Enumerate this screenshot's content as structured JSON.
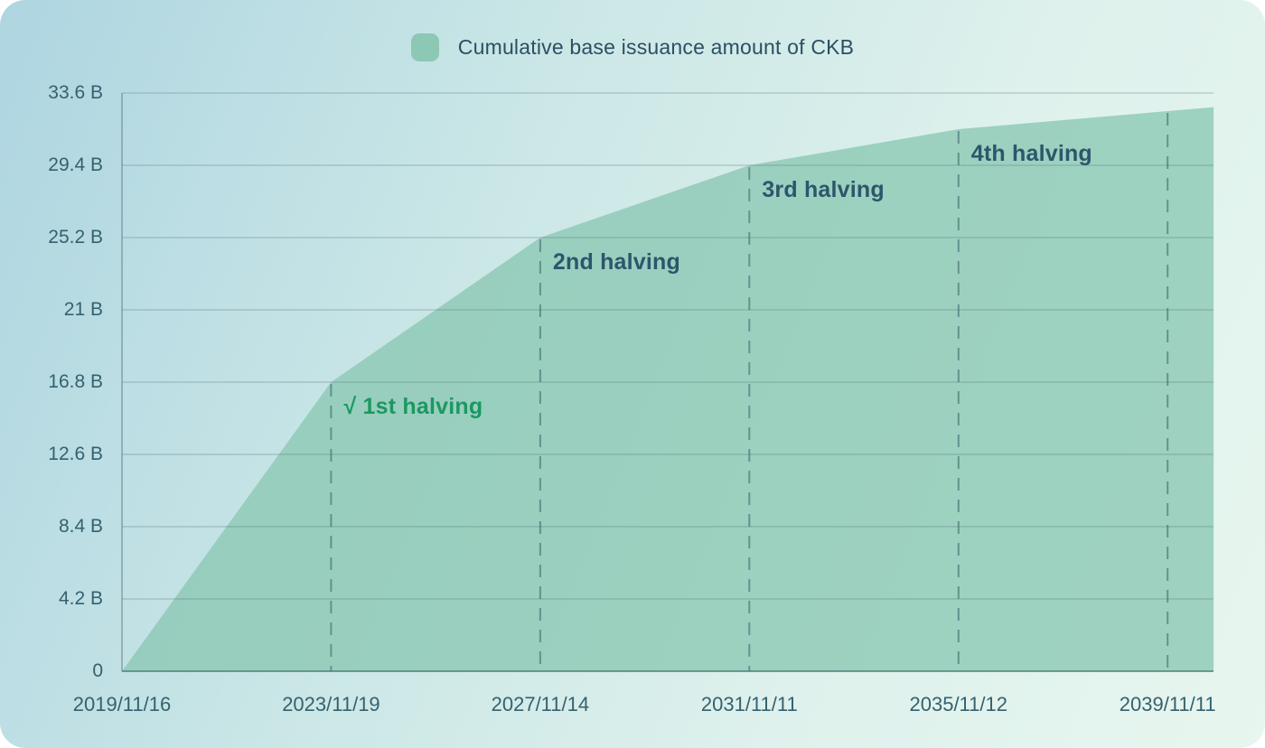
{
  "chart_data": {
    "type": "area",
    "title": "Cumulative base issuance amount of CKB",
    "legend_label": "Cumulative base issuance amount of CKB",
    "legend_position": "top-center",
    "grid": "horizontal-on, vertical-dashed-at-halvings",
    "x_axis": {
      "tick_labels": [
        "2019/11/16",
        "2023/11/19",
        "2027/11/14",
        "2031/11/11",
        "2035/11/12",
        "2039/11/11"
      ],
      "tick_years_from_start": [
        0,
        4,
        8,
        12,
        16,
        20
      ]
    },
    "y_axis": {
      "tick_labels": [
        "0",
        "4.2 B",
        "8.4 B",
        "12.6 B",
        "16.8 B",
        "21 B",
        "25.2 B",
        "29.4 B",
        "33.6 B"
      ],
      "tick_values_b": [
        0,
        4.2,
        8.4,
        12.6,
        16.8,
        21,
        25.2,
        29.4,
        33.6
      ],
      "ylim_b": [
        0,
        33.6
      ]
    },
    "series": [
      {
        "name": "Cumulative base issuance amount of CKB",
        "years_from_start": [
          0,
          1,
          2,
          3,
          4,
          5,
          6,
          7,
          8,
          9,
          10,
          11,
          12,
          13,
          14,
          15,
          16,
          17,
          18,
          19,
          20,
          20.88
        ],
        "values_b": [
          0,
          4.2,
          8.4,
          12.6,
          16.8,
          18.9,
          21,
          23.1,
          25.2,
          26.25,
          27.3,
          28.35,
          29.4,
          29.925,
          30.45,
          30.975,
          31.5,
          31.7625,
          32.025,
          32.2875,
          32.55,
          32.78
        ]
      }
    ],
    "halving_line_years": [
      4,
      8,
      12,
      16,
      20
    ],
    "annotations": [
      {
        "label": "√ 1st halving",
        "date": "2023/11/19",
        "year": 4,
        "cumulative_b": 16.8,
        "color": "#1b9862",
        "completed": true
      },
      {
        "label": "2nd halving",
        "date": "2027/11/14",
        "year": 8,
        "cumulative_b": 25.2,
        "color": "#2d566b",
        "completed": false
      },
      {
        "label": "3rd halving",
        "date": "2031/11/11",
        "year": 12,
        "cumulative_b": 29.4,
        "color": "#2d566b",
        "completed": false
      },
      {
        "label": "4th halving",
        "date": "2035/11/12",
        "year": 16,
        "cumulative_b": 31.5,
        "color": "#2d566b",
        "completed": false
      }
    ],
    "colors": {
      "area_fill": "#8cc8b4",
      "legend_swatch": "#8cc8b4",
      "gridline": "#546e74",
      "dashed_halving_line": "#375f66",
      "axis_bottom": "#4d7d78",
      "axis_text": "#35616f",
      "legend_text": "#2c4f62",
      "annotation_done": "#1b9862",
      "annotation_future": "#2d566b"
    }
  }
}
